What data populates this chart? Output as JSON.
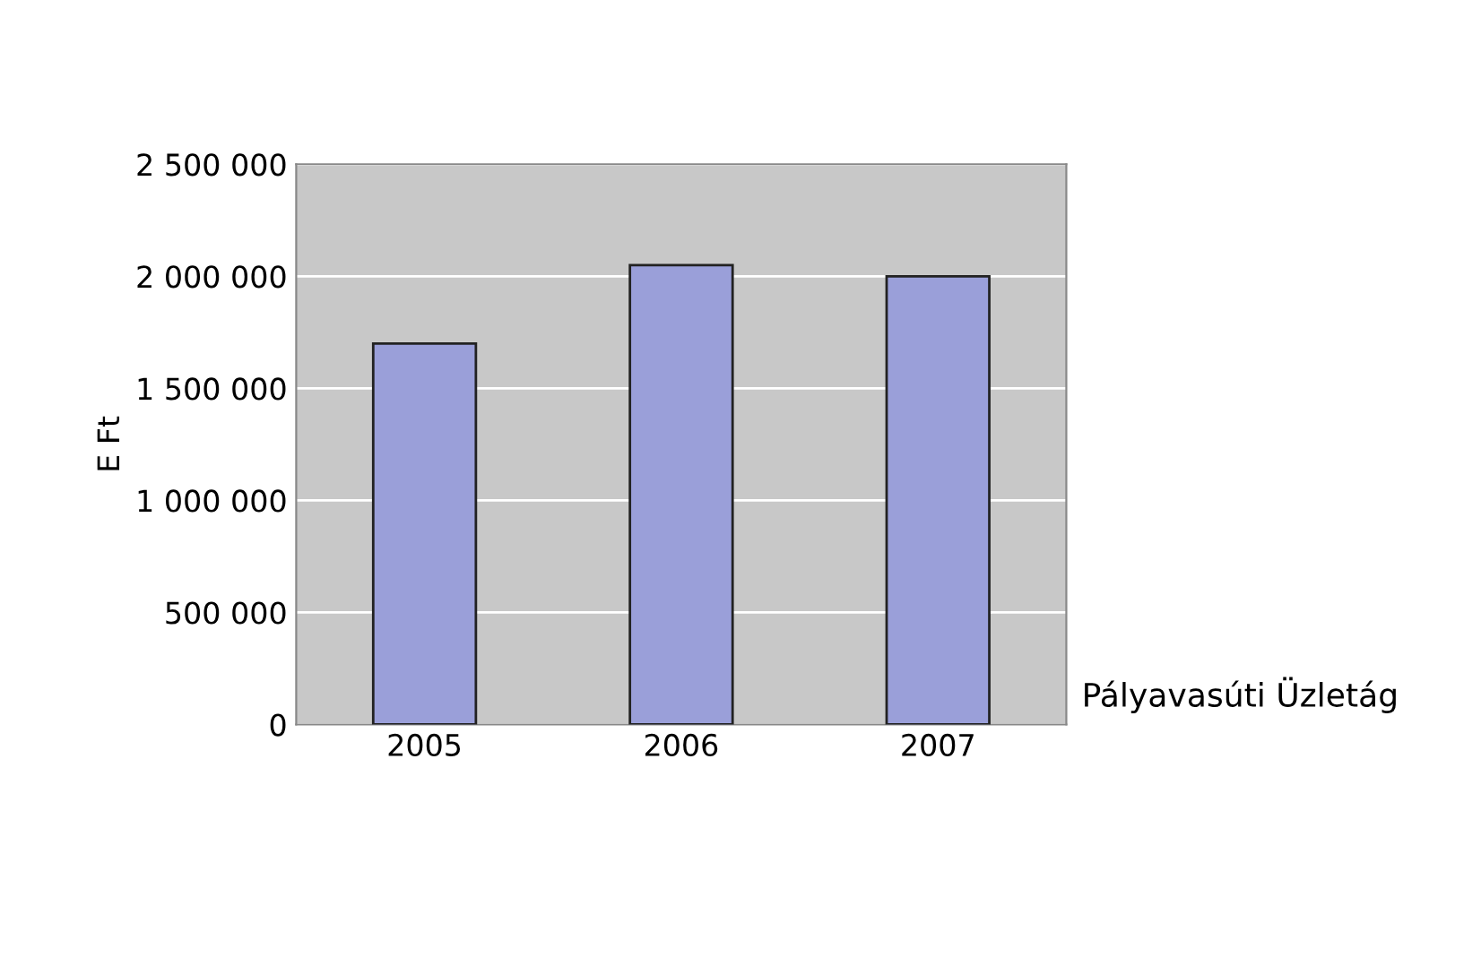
{
  "chart_data": {
    "type": "bar",
    "ylabel": "E Ft",
    "categories": [
      "2005",
      "2006",
      "2007"
    ],
    "series": [
      {
        "name": "Pályavasúti Üzletág",
        "color": "#9a9fd9",
        "values": [
          1700000,
          2050000,
          2000000
        ]
      }
    ],
    "ylim": [
      0,
      2500000
    ],
    "yticks": [
      {
        "value": 0,
        "label": "0"
      },
      {
        "value": 500000,
        "label": "500 000"
      },
      {
        "value": 1000000,
        "label": "1 000 000"
      },
      {
        "value": 1500000,
        "label": "1 500 000"
      },
      {
        "value": 2000000,
        "label": "2 000 000"
      },
      {
        "value": 2500000,
        "label": "2 500 000"
      }
    ],
    "grid": "y"
  }
}
